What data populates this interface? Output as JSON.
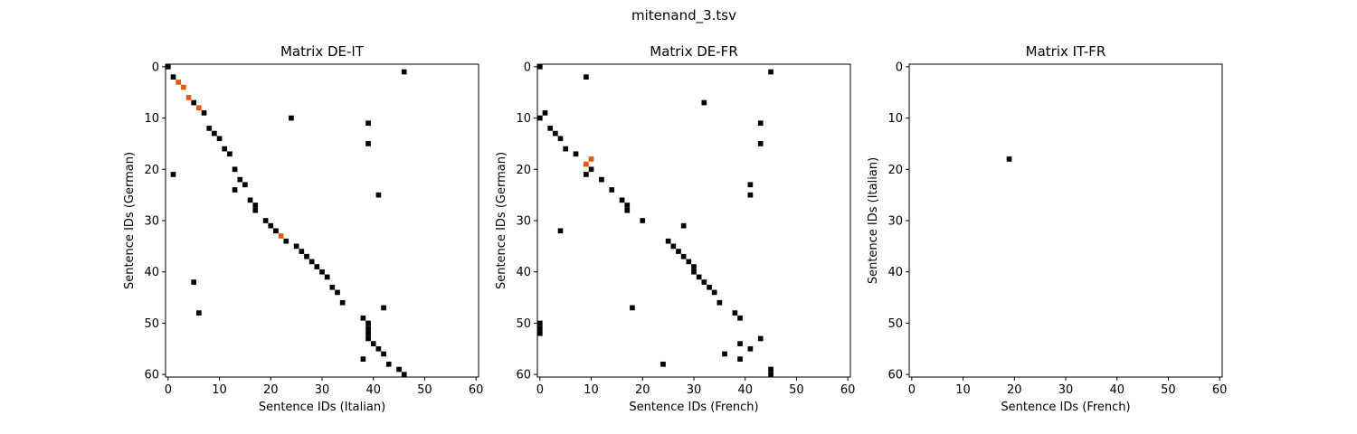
{
  "figure": {
    "title": "mitenand_3.tsv"
  },
  "colors": {
    "aligned": "#000000",
    "highlight": "#e8590c",
    "frame": "#000000",
    "background": "#ffffff"
  },
  "chart_data": [
    {
      "type": "heatmap",
      "title": "Matrix DE-IT",
      "xlabel": "Sentence IDs (Italian)",
      "ylabel": "Sentence IDs (German)",
      "xlim": [
        0,
        61
      ],
      "ylim": [
        0,
        61
      ],
      "y_inverted": true,
      "xticks": [
        0,
        10,
        20,
        30,
        40,
        50,
        60
      ],
      "yticks": [
        0,
        10,
        20,
        30,
        40,
        50,
        60
      ],
      "cells": [
        [
          0,
          0
        ],
        [
          46,
          1
        ],
        [
          1,
          2
        ],
        [
          5,
          7
        ],
        [
          7,
          9
        ],
        [
          24,
          10
        ],
        [
          39,
          11
        ],
        [
          8,
          12
        ],
        [
          9,
          13
        ],
        [
          10,
          14
        ],
        [
          39,
          15
        ],
        [
          11,
          16
        ],
        [
          12,
          17
        ],
        [
          13,
          20
        ],
        [
          1,
          21
        ],
        [
          14,
          22
        ],
        [
          15,
          23
        ],
        [
          13,
          24
        ],
        [
          41,
          25
        ],
        [
          16,
          26
        ],
        [
          17,
          27
        ],
        [
          17,
          28
        ],
        [
          19,
          30
        ],
        [
          20,
          31
        ],
        [
          21,
          32
        ],
        [
          23,
          34
        ],
        [
          25,
          35
        ],
        [
          26,
          36
        ],
        [
          27,
          37
        ],
        [
          28,
          38
        ],
        [
          29,
          39
        ],
        [
          30,
          40
        ],
        [
          31,
          41
        ],
        [
          5,
          42
        ],
        [
          32,
          43
        ],
        [
          33,
          44
        ],
        [
          34,
          46
        ],
        [
          42,
          47
        ],
        [
          6,
          48
        ],
        [
          38,
          49
        ],
        [
          39,
          50
        ],
        [
          39,
          51
        ],
        [
          39,
          52
        ],
        [
          39,
          53
        ],
        [
          40,
          54
        ],
        [
          41,
          55
        ],
        [
          42,
          56
        ],
        [
          38,
          57
        ],
        [
          43,
          58
        ],
        [
          45,
          59
        ],
        [
          46,
          60
        ]
      ],
      "highlight_cells": [
        [
          2,
          3
        ],
        [
          3,
          4
        ],
        [
          4,
          6
        ],
        [
          6,
          8
        ],
        [
          22,
          33
        ]
      ]
    },
    {
      "type": "heatmap",
      "title": "Matrix DE-FR",
      "xlabel": "Sentence IDs (French)",
      "ylabel": "Sentence IDs (German)",
      "xlim": [
        0,
        61
      ],
      "ylim": [
        0,
        61
      ],
      "y_inverted": true,
      "xticks": [
        0,
        10,
        20,
        30,
        40,
        50,
        60
      ],
      "yticks": [
        0,
        10,
        20,
        30,
        40,
        50,
        60
      ],
      "cells": [
        [
          0,
          0
        ],
        [
          45,
          1
        ],
        [
          9,
          2
        ],
        [
          32,
          7
        ],
        [
          1,
          9
        ],
        [
          0,
          10
        ],
        [
          43,
          11
        ],
        [
          2,
          12
        ],
        [
          3,
          13
        ],
        [
          4,
          14
        ],
        [
          43,
          15
        ],
        [
          5,
          16
        ],
        [
          7,
          17
        ],
        [
          9,
          21
        ],
        [
          10,
          20
        ],
        [
          12,
          22
        ],
        [
          14,
          24
        ],
        [
          41,
          23
        ],
        [
          41,
          25
        ],
        [
          16,
          26
        ],
        [
          17,
          27
        ],
        [
          17,
          28
        ],
        [
          20,
          30
        ],
        [
          28,
          31
        ],
        [
          4,
          32
        ],
        [
          25,
          34
        ],
        [
          26,
          35
        ],
        [
          27,
          36
        ],
        [
          28,
          37
        ],
        [
          29,
          38
        ],
        [
          30,
          39
        ],
        [
          30,
          40
        ],
        [
          31,
          41
        ],
        [
          32,
          42
        ],
        [
          33,
          43
        ],
        [
          34,
          44
        ],
        [
          35,
          46
        ],
        [
          18,
          47
        ],
        [
          38,
          48
        ],
        [
          39,
          49
        ],
        [
          0,
          50
        ],
        [
          0,
          51
        ],
        [
          0,
          52
        ],
        [
          43,
          53
        ],
        [
          39,
          54
        ],
        [
          41,
          55
        ],
        [
          36,
          56
        ],
        [
          39,
          57
        ],
        [
          24,
          58
        ],
        [
          45,
          59
        ],
        [
          45,
          60
        ]
      ],
      "highlight_cells": [
        [
          10,
          18
        ],
        [
          9,
          19
        ]
      ]
    },
    {
      "type": "heatmap",
      "title": "Matrix IT-FR",
      "xlabel": "Sentence IDs (French)",
      "ylabel": "Sentence IDs (Italian)",
      "xlim": [
        0,
        61
      ],
      "ylim": [
        0,
        61
      ],
      "y_inverted": true,
      "xticks": [
        0,
        10,
        20,
        30,
        40,
        50,
        60
      ],
      "yticks": [
        0,
        10,
        20,
        30,
        40,
        50,
        60
      ],
      "cells": [
        [
          19,
          18
        ]
      ],
      "highlight_cells": []
    }
  ]
}
